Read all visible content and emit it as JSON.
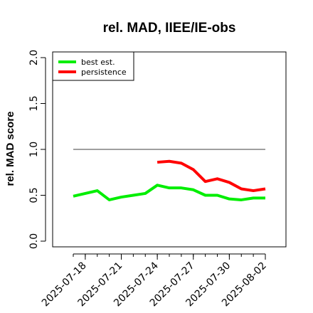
{
  "chart_data": {
    "type": "line",
    "title": "rel. MAD, IIEE/IE-obs",
    "xlabel": "",
    "ylabel": "rel. MAD score",
    "x_dates": [
      "2025-07-17",
      "2025-07-18",
      "2025-07-19",
      "2025-07-20",
      "2025-07-21",
      "2025-07-22",
      "2025-07-23",
      "2025-07-24",
      "2025-07-25",
      "2025-07-26",
      "2025-07-27",
      "2025-07-28",
      "2025-07-29",
      "2025-07-30",
      "2025-07-31",
      "2025-08-01",
      "2025-08-02"
    ],
    "x_ticks": [
      "2025-07-18",
      "2025-07-21",
      "2025-07-24",
      "2025-07-27",
      "2025-07-30",
      "2025-08-02"
    ],
    "xlim": [
      "2025-07-16",
      "2025-08-03"
    ],
    "ylim": [
      0,
      2.0
    ],
    "y_ticks": [
      "0.0",
      "0.5",
      "1.0",
      "1.5",
      "2.0"
    ],
    "reference_line": {
      "y": 1.0,
      "x_start": "2025-07-17",
      "x_end": "2025-08-02",
      "color": "#666666"
    },
    "legend_position": "top-left",
    "series": [
      {
        "name": "best est.",
        "color": "#00ee00",
        "x": [
          "2025-07-17",
          "2025-07-18",
          "2025-07-19",
          "2025-07-20",
          "2025-07-21",
          "2025-07-22",
          "2025-07-23",
          "2025-07-24",
          "2025-07-25",
          "2025-07-26",
          "2025-07-27",
          "2025-07-28",
          "2025-07-29",
          "2025-07-30",
          "2025-07-31",
          "2025-08-01",
          "2025-08-02"
        ],
        "values": [
          0.49,
          0.52,
          0.55,
          0.45,
          0.48,
          0.5,
          0.52,
          0.61,
          0.58,
          0.58,
          0.56,
          0.5,
          0.5,
          0.46,
          0.45,
          0.47,
          0.47
        ]
      },
      {
        "name": "persistence",
        "color": "#ff0000",
        "x": [
          "2025-07-24",
          "2025-07-25",
          "2025-07-26",
          "2025-07-27",
          "2025-07-28",
          "2025-07-29",
          "2025-07-30",
          "2025-07-31",
          "2025-08-01",
          "2025-08-02"
        ],
        "values": [
          0.86,
          0.87,
          0.85,
          0.78,
          0.65,
          0.68,
          0.64,
          0.57,
          0.55,
          0.57
        ]
      }
    ]
  }
}
